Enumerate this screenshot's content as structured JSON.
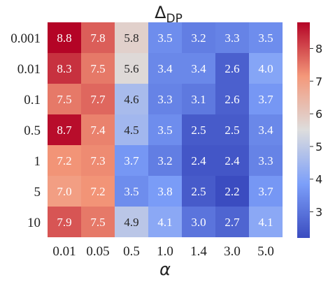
{
  "chart_data": {
    "type": "heatmap",
    "title_main": "Δ",
    "title_sub": "DP",
    "xlabel": "α",
    "ylabel": "",
    "x_categories": [
      "0.01",
      "0.05",
      "0.5",
      "1.0",
      "1.4",
      "3.0",
      "5.0"
    ],
    "y_categories": [
      "0.001",
      "0.01",
      "0.1",
      "0.5",
      "1",
      "5",
      "10"
    ],
    "values": [
      [
        8.8,
        7.8,
        5.8,
        3.5,
        3.2,
        3.3,
        3.5
      ],
      [
        8.3,
        7.5,
        5.6,
        3.4,
        3.4,
        2.6,
        4.0
      ],
      [
        7.5,
        7.7,
        4.6,
        3.3,
        3.1,
        2.6,
        3.7
      ],
      [
        8.7,
        7.4,
        4.5,
        3.5,
        2.5,
        2.5,
        3.4
      ],
      [
        7.2,
        7.3,
        3.7,
        3.2,
        2.4,
        2.4,
        3.3
      ],
      [
        7.0,
        7.2,
        3.5,
        3.8,
        2.5,
        2.2,
        3.7
      ],
      [
        7.9,
        7.5,
        4.9,
        4.1,
        3.0,
        2.7,
        4.1
      ]
    ],
    "colormap": "coolwarm",
    "colorbar": {
      "range": [
        2.2,
        8.8
      ],
      "ticks": [
        3,
        4,
        5,
        6,
        7,
        8
      ]
    },
    "annotations": true,
    "grid": false,
    "legend": "colorbar-right"
  }
}
